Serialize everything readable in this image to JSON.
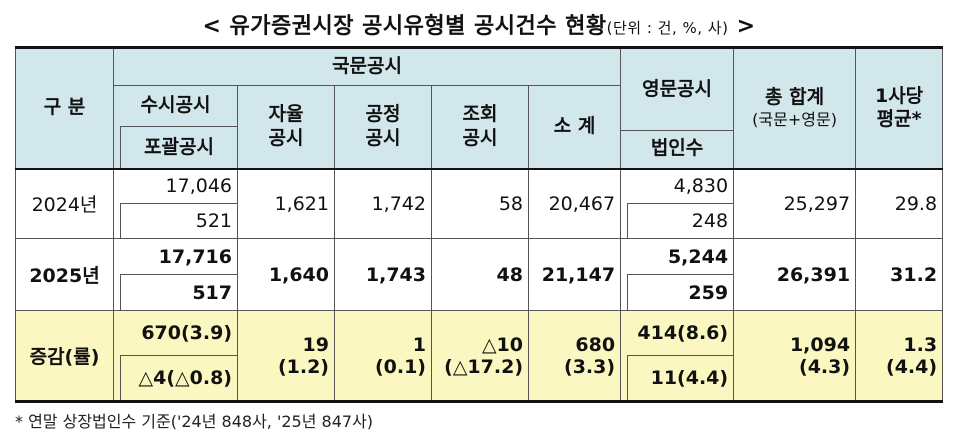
{
  "title": {
    "main": "< 유가증권시장 공시유형별 공시건수 현황",
    "unit": "(단위 : 건, %, 사)",
    "close": " >"
  },
  "headers": {
    "category": "구 분",
    "domestic": "국문공시",
    "english": "영문공시",
    "occasional": "수시공시",
    "comprehensive": "포괄공시",
    "voluntary_1": "자율",
    "voluntary_2": "공시",
    "fair_1": "공정",
    "fair_2": "공시",
    "inquiry_1": "조회",
    "inquiry_2": "공시",
    "subtotal": "소 계",
    "corp_count": "법인수",
    "total": "총 합계",
    "total_sub": "(국문+영문)",
    "per_company_1": "1사당",
    "per_company_2": "평균*"
  },
  "rows": [
    {
      "label": "2024년",
      "occasional": "17,046",
      "comprehensive": "521",
      "voluntary": "1,621",
      "fair": "1,742",
      "inquiry": "58",
      "subtotal": "20,467",
      "english": "4,830",
      "corp_count": "248",
      "total": "25,297",
      "average": "29.8"
    },
    {
      "label": "2025년",
      "occasional": "17,716",
      "comprehensive": "517",
      "voluntary": "1,640",
      "fair": "1,743",
      "inquiry": "48",
      "subtotal": "21,147",
      "english": "5,244",
      "corp_count": "259",
      "total": "26,391",
      "average": "31.2"
    }
  ],
  "change": {
    "label": "증감(률)",
    "occasional": "670(3.9)",
    "comprehensive": "△4(△0.8)",
    "voluntary_val": "19",
    "voluntary_rate": "(1.2)",
    "fair_val": "1",
    "fair_rate": "(0.1)",
    "inquiry_val": "△10",
    "inquiry_rate": "(△17.2)",
    "subtotal_val": "680",
    "subtotal_rate": "(3.3)",
    "english": "414(8.6)",
    "corp_count": "11(4.4)",
    "total_val": "1,094",
    "total_rate": "(4.3)",
    "average_val": "1.3",
    "average_rate": "(4.4)"
  },
  "footnote": "* 연말 상장법인수 기준('24년 848사, '25년 847사)",
  "colors": {
    "header_bg": "#d2e7ec",
    "change_bg": "#fbf7c1"
  }
}
